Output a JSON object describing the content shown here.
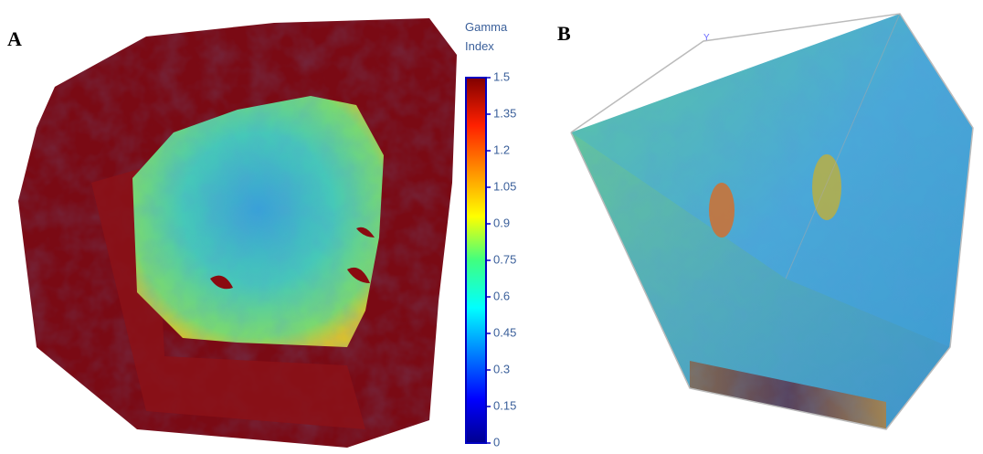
{
  "panels": [
    {
      "label": "A"
    },
    {
      "label": "B",
      "axis_label": "Y"
    }
  ],
  "colorbar": {
    "title_lines": [
      "Gamma",
      "Index"
    ],
    "range": [
      0,
      1.5
    ],
    "ticks": [
      1.5,
      1.35,
      1.2,
      1.05,
      0.9,
      0.75,
      0.6,
      0.45,
      0.3,
      0.15,
      0
    ]
  }
}
